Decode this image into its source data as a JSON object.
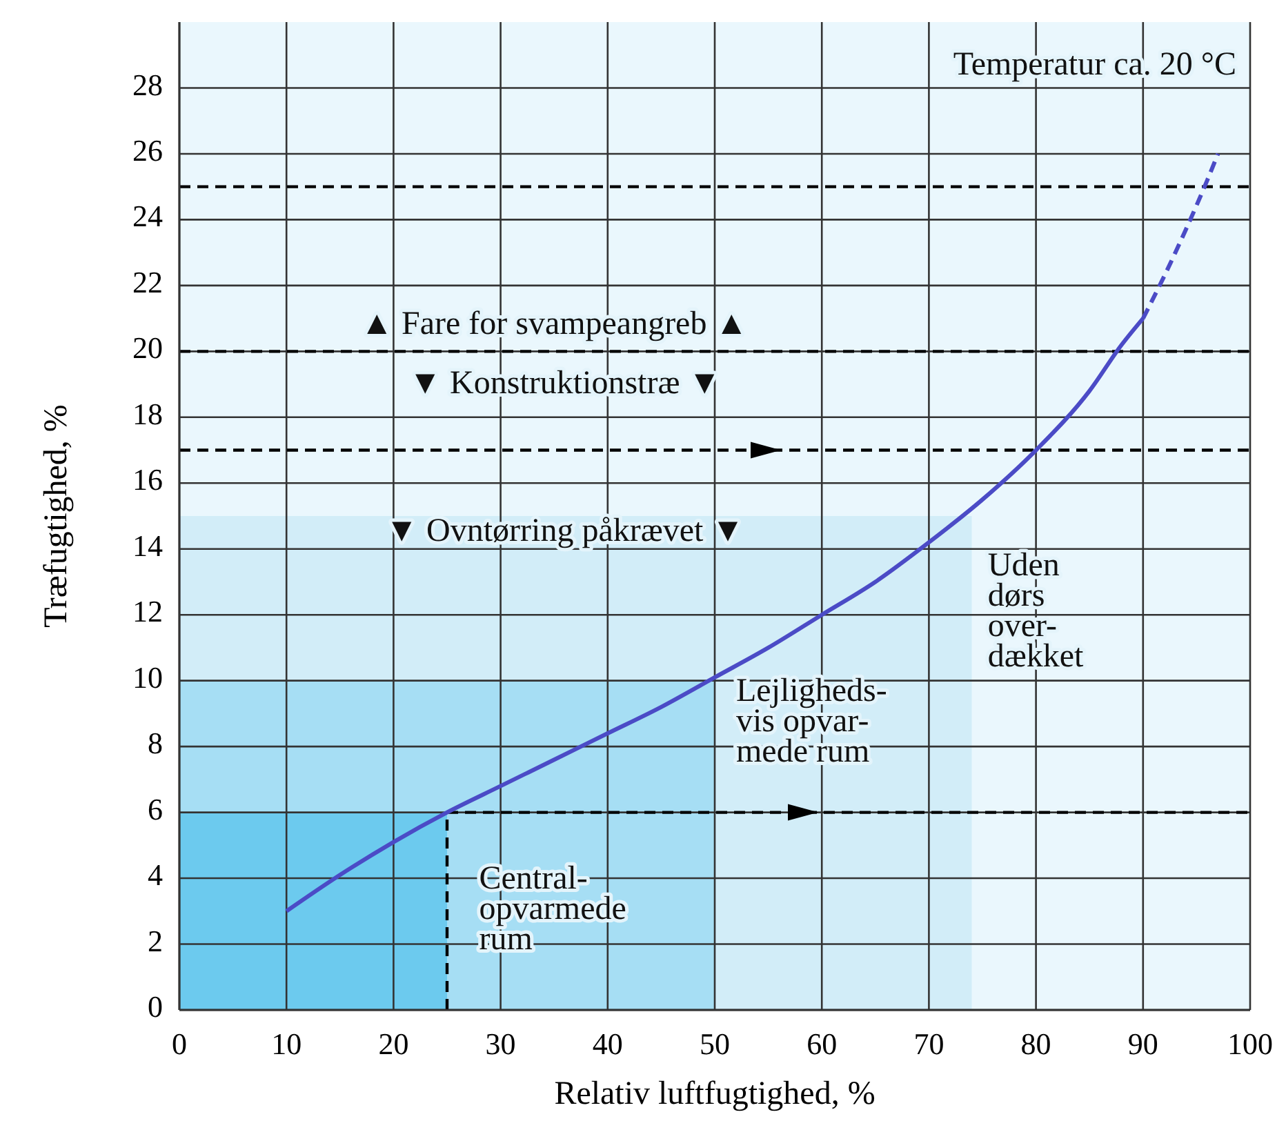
{
  "chart_data": {
    "type": "line",
    "xlabel": "Relativ luftfugtighed, %",
    "ylabel": "Træfugtighed, %",
    "xlim": [
      0,
      100
    ],
    "ylim": [
      0,
      30
    ],
    "xticks": [
      0,
      10,
      20,
      30,
      40,
      50,
      60,
      70,
      80,
      90,
      100
    ],
    "yticks": [
      0,
      2,
      4,
      6,
      8,
      10,
      12,
      14,
      16,
      18,
      20,
      22,
      24,
      26,
      28
    ],
    "grid": true,
    "series": [
      {
        "type": "area",
        "color": "#d2edf8",
        "x": [
          0,
          74
        ],
        "values": [
          15,
          15
        ]
      },
      {
        "type": "area",
        "color": "#a6def4",
        "x": [
          0,
          50
        ],
        "values": [
          10,
          10
        ]
      },
      {
        "type": "area",
        "color": "#6ccaee",
        "x": [
          0,
          25
        ],
        "values": [
          6,
          6
        ]
      },
      {
        "type": "line",
        "color": "#000000",
        "line_style": "dashed",
        "x": [
          25,
          25
        ],
        "values": [
          0,
          6
        ]
      },
      {
        "type": "line",
        "color": "#000000",
        "line_style": "dashed",
        "x": [
          25,
          100
        ],
        "values": [
          6,
          6
        ]
      },
      {
        "color": "#4b4bc6",
        "line_style": "solid",
        "x": [
          10,
          15,
          20,
          25,
          30,
          35,
          40,
          45,
          50,
          55,
          60,
          65,
          70,
          75,
          80,
          85,
          88,
          90
        ],
        "values": [
          3,
          4.1,
          5.1,
          6,
          6.8,
          7.6,
          8.4,
          9.2,
          10.1,
          11,
          12,
          13,
          14.2,
          15.5,
          17,
          18.8,
          20.2,
          21
        ]
      },
      {
        "color": "#4b4bc6",
        "line_style": "dashed",
        "x": [
          90,
          92,
          94,
          96,
          97
        ],
        "values": [
          21,
          22.3,
          23.7,
          25.2,
          26
        ]
      }
    ],
    "ref_lines": [
      {
        "axis": "y",
        "value": 25,
        "color": "#000000",
        "line_style": "dashed"
      },
      {
        "axis": "y",
        "value": 20,
        "color": "#000000",
        "line_style": "dashed"
      },
      {
        "axis": "y",
        "value": 17,
        "color": "#000000",
        "line_style": "dashed"
      }
    ],
    "annotations": [
      "Temperatur ca. 20 °C",
      "▲ Fare for svampeangreb ▲",
      "▼ Konstruktionstræ ▼",
      "▼ Ovntørring påkrævet ▼",
      "Uden\ndørs\nover-\ndækket",
      "Lejligheds-\nvis opvar-\nmede rum",
      "Central-\nopvarmede\nrum"
    ]
  }
}
